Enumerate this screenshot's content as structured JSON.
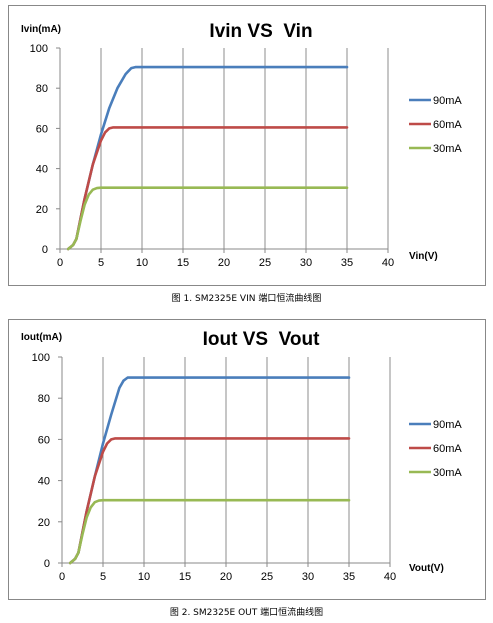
{
  "charts": [
    {
      "caption": "图 1. SM2325E VIN 端口恒流曲线图",
      "chart_data": {
        "type": "line",
        "title": "Ivin VS  Vin",
        "ylabel": "Ivin(mA)",
        "xlabel": "Vin(V)",
        "xlim": [
          0,
          40
        ],
        "ylim": [
          0,
          100
        ],
        "xticks": [
          0,
          5,
          10,
          15,
          20,
          25,
          30,
          35,
          40
        ],
        "yticks": [
          0,
          20,
          40,
          60,
          80,
          100
        ],
        "grid": "vertical",
        "legend_position": "right",
        "series": [
          {
            "name": "90mA",
            "color": "#4A7EBB",
            "x": [
              1,
              1.6,
              2,
              2.5,
              3,
              4,
              5,
              6,
              7,
              8,
              8.7,
              9.2,
              9.5,
              35
            ],
            "y": [
              0,
              2,
              5,
              15,
              25,
              42,
              57,
              70,
              80,
              87,
              90,
              90.5,
              90.5,
              90.5
            ]
          },
          {
            "name": "60mA",
            "color": "#BE4B48",
            "x": [
              1,
              1.6,
              2,
              2.5,
              3,
              4,
              5,
              5.5,
              6,
              6.5,
              35
            ],
            "y": [
              0,
              2,
              5,
              15,
              25,
              42,
              54,
              58,
              60,
              60.5,
              60.5
            ]
          },
          {
            "name": "30mA",
            "color": "#98B954",
            "x": [
              1,
              1.6,
              2,
              2.5,
              3,
              3.5,
              4,
              4.5,
              5,
              35
            ],
            "y": [
              0,
              2,
              5,
              14,
              22,
              27,
              29.5,
              30.3,
              30.5,
              30.5
            ]
          }
        ]
      }
    },
    {
      "caption": "图 2. SM2325E OUT 端口恒流曲线图",
      "chart_data": {
        "type": "line",
        "title": "Iout VS  Vout",
        "ylabel": "Iout(mA)",
        "xlabel": "Vout(V)",
        "xlim": [
          0,
          40
        ],
        "ylim": [
          0,
          100
        ],
        "xticks": [
          0,
          5,
          10,
          15,
          20,
          25,
          30,
          35,
          40
        ],
        "yticks": [
          0,
          20,
          40,
          60,
          80,
          100
        ],
        "grid": "vertical",
        "legend_position": "right",
        "series": [
          {
            "name": "90mA",
            "color": "#4A7EBB",
            "x": [
              1,
              1.6,
              2,
              2.5,
              3,
              4,
              5,
              6,
              7,
              7.5,
              8,
              35
            ],
            "y": [
              0,
              2,
              5,
              15,
              25,
              42,
              58,
              72,
              85,
              88.5,
              90,
              90
            ]
          },
          {
            "name": "60mA",
            "color": "#BE4B48",
            "x": [
              1,
              1.6,
              2,
              2.5,
              3,
              4,
              5,
              5.5,
              6,
              6.5,
              35
            ],
            "y": [
              0,
              2,
              5,
              15,
              25,
              42,
              54,
              58,
              60,
              60.5,
              60.5
            ]
          },
          {
            "name": "30mA",
            "color": "#98B954",
            "x": [
              1,
              1.6,
              2,
              2.5,
              3,
              3.5,
              4,
              4.5,
              5,
              35
            ],
            "y": [
              0,
              2,
              5,
              14,
              22,
              27,
              29.5,
              30.3,
              30.5,
              30.5
            ]
          }
        ]
      }
    }
  ]
}
